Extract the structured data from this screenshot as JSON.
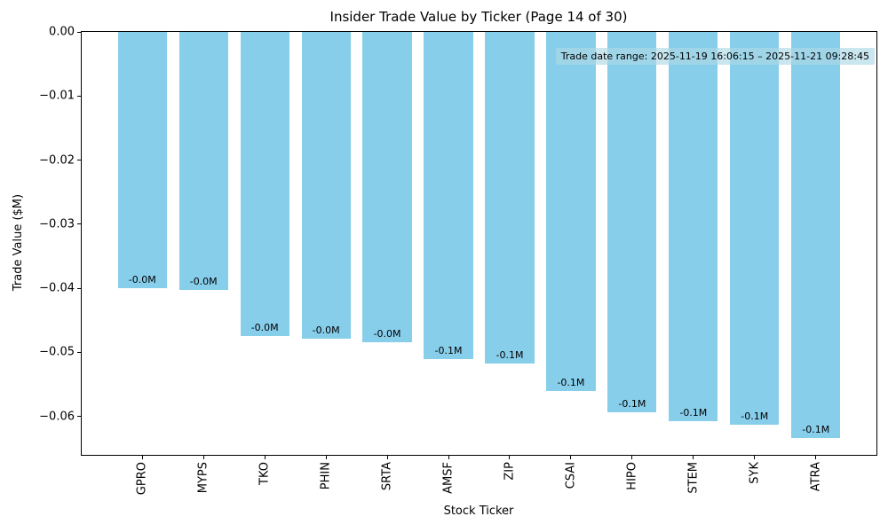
{
  "figure": {
    "title": "Insider Trade Value by Ticker (Page 14 of 30)",
    "xlabel": "Stock Ticker",
    "ylabel": "Trade Value ($M)",
    "annotation": "Trade date range: 2025-11-19 16:06:15 – 2025-11-21 09:28:45"
  },
  "colors": {
    "bar": "#87CEEB",
    "annotation_bg": "rgba(173,216,230,0.65)",
    "axis": "#000000",
    "text": "#000000",
    "background": "#ffffff"
  },
  "chart_data": {
    "type": "bar",
    "title": "Insider Trade Value by Ticker (Page 14 of 30)",
    "xlabel": "Stock Ticker",
    "ylabel": "Trade Value ($M)",
    "categories": [
      "GPRO",
      "MYPS",
      "TKO",
      "PHIN",
      "SRTA",
      "AMSF",
      "ZIP",
      "CSAI",
      "HIPO",
      "STEM",
      "SYK",
      "ATRA"
    ],
    "values": [
      -0.04,
      -0.0402,
      -0.0474,
      -0.0479,
      -0.0484,
      -0.051,
      -0.0517,
      -0.056,
      -0.0594,
      -0.0607,
      -0.0613,
      -0.0634
    ],
    "bar_labels": [
      "-0.0M",
      "-0.0M",
      "-0.0M",
      "-0.0M",
      "-0.0M",
      "-0.1M",
      "-0.1M",
      "-0.1M",
      "-0.1M",
      "-0.1M",
      "-0.1M",
      "-0.1M"
    ],
    "bar_color": "skyblue",
    "ylim": [
      -0.066,
      0
    ],
    "yticks": [
      0,
      -0.01,
      -0.02,
      -0.03,
      -0.04,
      -0.05,
      -0.06
    ],
    "ytick_labels": [
      "0.00",
      "−0.01",
      "−0.02",
      "−0.03",
      "−0.04",
      "−0.05",
      "−0.06"
    ],
    "grid": false,
    "legend": null,
    "annotation": "Trade date range: 2025-11-19 16:06:15 – 2025-11-21 09:28:45"
  }
}
